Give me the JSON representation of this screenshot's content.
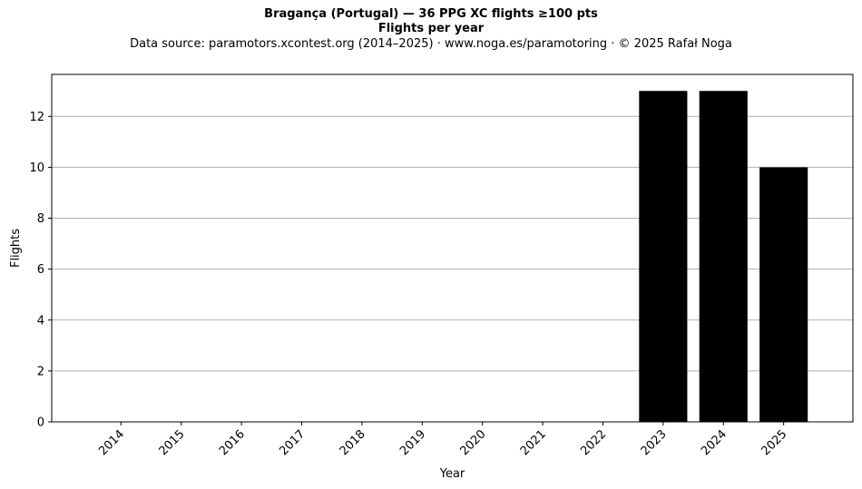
{
  "header": {
    "title": "Bragança (Portugal)  —  36 PPG XC flights ≥100 pts",
    "subtitle": "Flights per year",
    "source": "Data source: paramotors.xcontest.org (2014–2025)  ·  www.noga.es/paramotoring  ·  © 2025 Rafał Noga"
  },
  "chart_data": {
    "type": "bar",
    "title": "Bragança (Portugal)  —  36 PPG XC flights ≥100 pts",
    "subtitle": "Flights per year",
    "xlabel": "Year",
    "ylabel": "Flights",
    "categories": [
      "2014",
      "2015",
      "2016",
      "2017",
      "2018",
      "2019",
      "2020",
      "2021",
      "2022",
      "2023",
      "2024",
      "2025"
    ],
    "values": [
      0,
      0,
      0,
      0,
      0,
      0,
      0,
      0,
      0,
      13,
      13,
      10
    ],
    "ylim": [
      0,
      13.65
    ],
    "yticks": [
      0,
      2,
      4,
      6,
      8,
      10,
      12
    ],
    "grid": "y",
    "bar_color": "#000000"
  }
}
